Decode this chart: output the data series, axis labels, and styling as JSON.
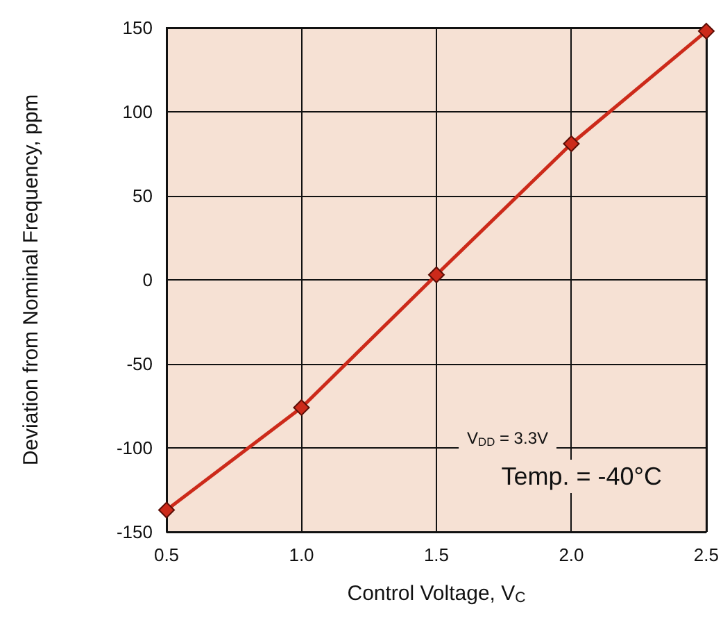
{
  "chart_data": {
    "type": "line",
    "xlabel": "Control Voltage, V$_{C}$",
    "ylabel": "Deviation from Nominal Frequency, ppm",
    "x": [
      0.5,
      1.0,
      1.5,
      2.0,
      2.5
    ],
    "series": [
      {
        "color": "#cc2a1a",
        "values": [
          -137,
          -76,
          3,
          81,
          148
        ]
      }
    ],
    "xlim": [
      0.5,
      2.5
    ],
    "xticks": [
      {
        "value": 0.5,
        "label": "0.5"
      },
      {
        "value": 1.0,
        "label": "1.0"
      },
      {
        "value": 1.5,
        "label": "1.5"
      },
      {
        "value": 2.0,
        "label": "2.0"
      },
      {
        "value": 2.5,
        "label": "2.5"
      }
    ],
    "ylim": [
      -150,
      150
    ],
    "yticks": [
      -150,
      -100,
      -50,
      0,
      50,
      100,
      150
    ],
    "grid": true,
    "marker": "diamond",
    "line_style": "solid",
    "annotations": [
      "V$_{DD}$ = 3.3V",
      "Temp. = -40°C"
    ]
  }
}
